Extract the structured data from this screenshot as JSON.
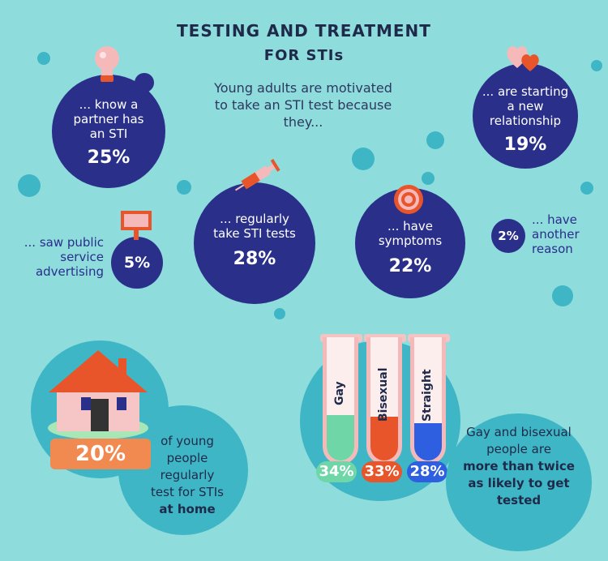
{
  "header": {
    "title_line1": "TESTING AND TREATMENT",
    "title_line2": "FOR STIs",
    "intro": "Young adults are motivated to take an STI test because they..."
  },
  "reasons": {
    "partner": {
      "label": "... know a partner has an STI",
      "pct": "25%"
    },
    "relationship": {
      "label": "... are starting a new relationship",
      "pct": "19%"
    },
    "regular": {
      "label": "... regularly take STI tests",
      "pct": "28%"
    },
    "symptoms": {
      "label": "... have symptoms",
      "pct": "22%"
    },
    "advertising": {
      "label": "... saw public service advertising",
      "pct": "5%"
    },
    "other": {
      "label": "... have another reason",
      "pct": "2%"
    }
  },
  "home": {
    "pct": "20%",
    "text_plain": "of young people regularly test for STIs",
    "text_bold": "at home"
  },
  "tubes": [
    {
      "label": "Gay",
      "pct": "34%",
      "color": "#6fd6a8"
    },
    {
      "label": "Bisexual",
      "pct": "33%",
      "color": "#e8552a"
    },
    {
      "label": "Straight",
      "pct": "28%",
      "color": "#2e5fe0"
    }
  ],
  "compare": {
    "text_plain": "Gay and bisexual people are",
    "text_bold": "more than twice as likely to get tested"
  },
  "colors": {
    "navy": "#2a2f8a",
    "teal": "#3fb6c6",
    "background": "#8edcdc",
    "orange": "#e8552a",
    "pink": "#f6b9b9"
  }
}
